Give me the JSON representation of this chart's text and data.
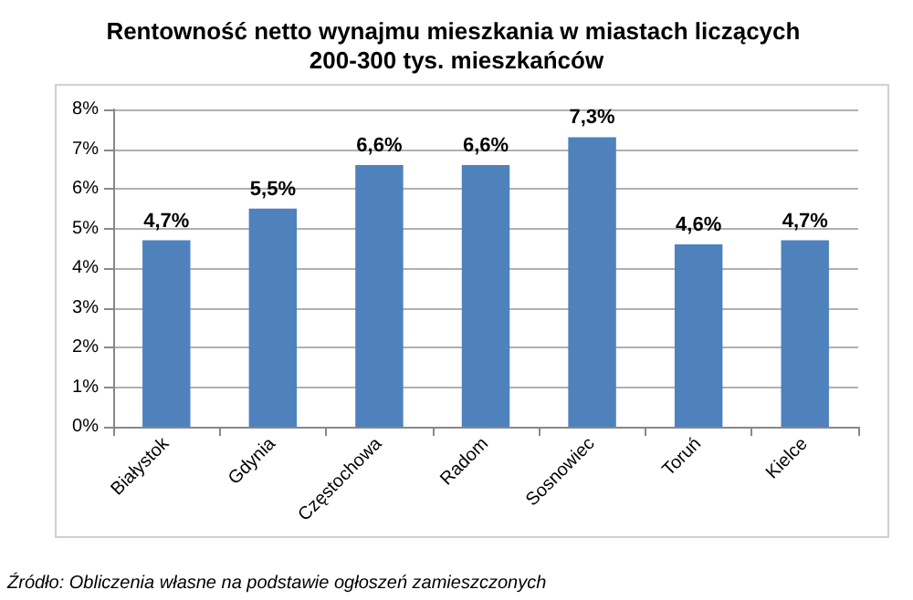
{
  "chart_data": {
    "type": "bar",
    "title": "Rentowność netto wynajmu mieszkania w miastach liczących 200-300 tys. mieszkańców",
    "categories": [
      "Białystok",
      "Gdynia",
      "Częstochowa",
      "Radom",
      "Sosnowiec",
      "Toruń",
      "Kielce"
    ],
    "values": [
      4.7,
      5.5,
      6.6,
      6.6,
      7.3,
      4.6,
      4.7
    ],
    "value_labels": [
      "4,7%",
      "5,5%",
      "6,6%",
      "6,6%",
      "7,3%",
      "4,6%",
      "4,7%"
    ],
    "color": "#4f81bd",
    "ylim": [
      0,
      8
    ],
    "yticks": [
      {
        "value": 0,
        "label": "0%"
      },
      {
        "value": 1,
        "label": "1%"
      },
      {
        "value": 2,
        "label": "2%"
      },
      {
        "value": 3,
        "label": "3%"
      },
      {
        "value": 4,
        "label": "4%"
      },
      {
        "value": 5,
        "label": "5%"
      },
      {
        "value": 6,
        "label": "6%"
      },
      {
        "value": 7,
        "label": "7%"
      },
      {
        "value": 8,
        "label": "8%"
      }
    ],
    "grid": "y",
    "annotations": [
      "Źródło: Obliczenia własne na podstawie ogłoszeń zamieszczonych"
    ]
  }
}
